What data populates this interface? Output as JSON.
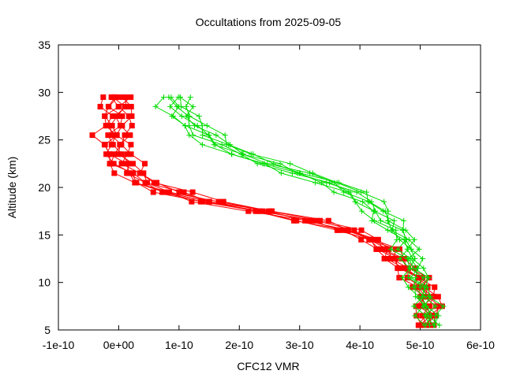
{
  "chart_data": {
    "type": "line",
    "title": "Occultations from 2025-09-05",
    "xlabel": "CFC12 VMR",
    "ylabel": "Altitude (km)",
    "xlim": [
      -1e-10,
      6e-10
    ],
    "ylim": [
      5,
      35
    ],
    "x_ticks": [
      -1e-10,
      0,
      1e-10,
      2e-10,
      3e-10,
      4e-10,
      5e-10,
      6e-10
    ],
    "x_tick_labels": [
      "-1e-10",
      "0e+00",
      "1e-10",
      "2e-10",
      "3e-10",
      "4e-10",
      "5e-10",
      "6e-10"
    ],
    "y_ticks": [
      5,
      10,
      15,
      20,
      25,
      30,
      35
    ],
    "y_tick_labels": [
      "5",
      "10",
      "15",
      "20",
      "25",
      "30",
      "35"
    ],
    "grid": false,
    "altitudes": [
      5.5,
      6.5,
      7.5,
      8.5,
      9.5,
      10.5,
      11.5,
      12.5,
      13.5,
      14.5,
      15.5,
      16.5,
      17.5,
      18.5,
      19.5,
      20.5,
      21.5,
      22.5,
      23.5,
      24.5,
      25.5,
      26.5,
      27.5,
      28.5,
      29.5
    ],
    "series": [
      {
        "name": "red profiles",
        "color": "#ff0000",
        "marker": "square",
        "base_values": [
          5.1e-10,
          5.15e-10,
          5.15e-10,
          5.15e-10,
          5.05e-10,
          4.95e-10,
          4.75e-10,
          4.6e-10,
          4.45e-10,
          4.2e-10,
          3.8e-10,
          3.2e-10,
          2.4e-10,
          1.5e-10,
          9e-11,
          4.5e-11,
          2.5e-11,
          1e-11,
          0.0,
          -2e-12,
          -5e-12,
          -2e-12,
          0.0,
          0.0,
          0.0
        ],
        "offsets": [
          -3.5e-11,
          -2e-11,
          -1e-11,
          0.0,
          1e-11,
          2e-11,
          3e-11,
          -2.5e-11
        ]
      },
      {
        "name": "green profiles",
        "color": "#00dd00",
        "marker": "plus",
        "base_values": [
          5.2e-10,
          5.15e-10,
          5.1e-10,
          5.05e-10,
          5e-10,
          4.95e-10,
          4.9e-10,
          4.85e-10,
          4.8e-10,
          4.75e-10,
          4.6e-10,
          4.45e-10,
          4.3e-10,
          4.1e-10,
          3.85e-10,
          3.5e-10,
          3e-10,
          2.5e-10,
          2.05e-10,
          1.7e-10,
          1.45e-10,
          1.25e-10,
          1.1e-10,
          1e-10,
          9.5e-11
        ],
        "offsets": [
          -3.5e-11,
          -2e-11,
          -1e-11,
          0.0,
          1e-11,
          2e-11,
          3e-11
        ]
      }
    ]
  }
}
